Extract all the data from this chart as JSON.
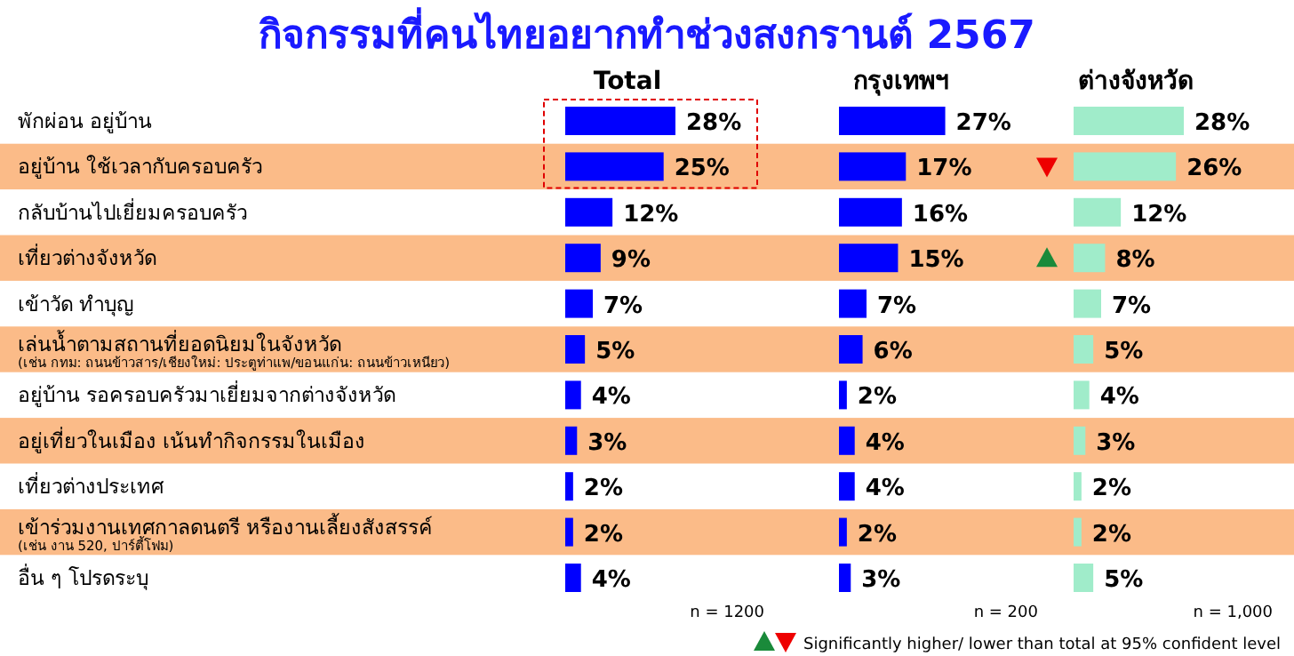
{
  "chart_data": [
    {
      "type": "bar",
      "orientation": "horizontal",
      "title": "กิจกรรมที่คนไทยอยากทำช่วงสงกรานต์ 2567",
      "tick_labels": "y",
      "categories": [
        "พักผ่อน อยู่บ้าน",
        "อยู่บ้าน ใช้เวลากับครอบครัว",
        "กลับบ้านไปเยี่ยมครอบครัว",
        "เที่ยวต่างจังหวัด",
        "เข้าวัด ทำบุญ",
        "เล่นน้ำตามสถานที่ยอดนิยมในจังหวัด\n(เช่น กทม: ถนนข้าวสาร/เชียงใหม่: ประตูท่าแพ/ขอนแก่น: ถนนข้าวเหนียว)",
        "อยู่บ้าน รอครอบครัวมาเยี่ยมจากต่างจังหวัด",
        "อยู่เที่ยวในเมือง เน้นทำกิจกรรมในเมือง",
        "เที่ยวต่างประเทศ",
        "เข้าร่วมงานเทศกาลดนตรี หรืองานเลี้ยงสังสรรค์\n(เช่น งาน 520, ปาร์ตี้โฟม)",
        "อื่น ๆ โปรดระบุ"
      ],
      "series": [
        {
          "name": "Total",
          "color": "#0000ff",
          "values": [
            28,
            25,
            12,
            9,
            7,
            5,
            4,
            3,
            2,
            2,
            4
          ],
          "value_labels": [
            "28%",
            "25%",
            "12%",
            "9%",
            "7%",
            "5%",
            "4%",
            "3%",
            "2%",
            "2%",
            "4%"
          ]
        }
      ],
      "annotations": [
        "n = 1200"
      ],
      "bands": [
        {
          "axis": "y",
          "from": "อยู่บ้าน ใช้เวลากับครอบครัว",
          "to": "อยู่บ้าน ใช้เวลากับครอบครัว",
          "color": "#fbbb88"
        },
        {
          "axis": "y",
          "from": "เที่ยวต่างจังหวัด",
          "to": "เที่ยวต่างจังหวัด",
          "color": "#fbbb88"
        },
        {
          "axis": "y",
          "from": "เล่นน้ำตามสถานที่ยอดนิยมในจังหวัด\n(เช่น กทม: ถนนข้าวสาร/เชียงใหม่: ประตูท่าแพ/ขอนแก่น: ถนนข้าวเหนียว)",
          "to": "เล่นน้ำตามสถานที่ยอดนิยมในจังหวัด\n(เช่น กทม: ถนนข้าวสาร/เชียงใหม่: ประตูท่าแพ/ขอนแก่น: ถนนข้าวเหนียว)",
          "color": "#fbbb88"
        },
        {
          "axis": "y",
          "from": "อยู่เที่ยวในเมือง เน้นทำกิจกรรมในเมือง",
          "to": "อยู่เที่ยวในเมือง เน้นทำกิจกรรมในเมือง",
          "color": "#fbbb88"
        },
        {
          "axis": "y",
          "from": "เข้าร่วมงานเทศกาลดนตรี หรืองานเลี้ยงสังสรรค์\n(เช่น งาน 520, ปาร์ตี้โฟม)",
          "to": "เข้าร่วมงานเทศกาลดนตรี หรืองานเลี้ยงสังสรรค์\n(เช่น งาน 520, ปาร์ตี้โฟม)",
          "color": "#fbbb88"
        }
      ]
    },
    {
      "type": "bar",
      "orientation": "horizontal",
      "tick_labels": false,
      "categories": [
        "พักผ่อน อยู่บ้าน",
        "อยู่บ้าน ใช้เวลากับครอบครัว",
        "กลับบ้านไปเยี่ยมครอบครัว",
        "เที่ยวต่างจังหวัด",
        "เข้าวัด ทำบุญ",
        "เล่นน้ำตามสถานที่ยอดนิยมในจังหวัด\n(เช่น กทม: ถนนข้าวสาร/เชียงใหม่: ประตูท่าแพ/ขอนแก่น: ถนนข้าวเหนียว)",
        "อยู่บ้าน รอครอบครัวมาเยี่ยมจากต่างจังหวัด",
        "อยู่เที่ยวในเมือง เน้นทำกิจกรรมในเมือง",
        "เที่ยวต่างประเทศ",
        "เข้าร่วมงานเทศกาลดนตรี หรืองานเลี้ยงสังสรรค์\n(เช่น งาน 520, ปาร์ตี้โฟม)",
        "อื่น ๆ โปรดระบุ"
      ],
      "series": [
        {
          "name": "กรุงเทพฯ",
          "color": "#0000ff",
          "values": [
            27,
            17,
            16,
            15,
            7,
            6,
            2,
            4,
            4,
            2,
            3
          ],
          "value_labels": [
            "27%",
            "17%",
            "16%",
            "15%",
            "7%",
            "6%",
            "2%",
            "4%",
            "4%",
            "2%",
            "3%"
          ]
        }
      ],
      "annotations": [
        "n = 200"
      ],
      "bands": [
        {
          "axis": "y",
          "from": "อยู่บ้าน ใช้เวลากับครอบครัว",
          "to": "อยู่บ้าน ใช้เวลากับครอบครัว",
          "color": "#fbbb88"
        },
        {
          "axis": "y",
          "from": "เที่ยวต่างจังหวัด",
          "to": "เที่ยวต่างจังหวัด",
          "color": "#fbbb88"
        },
        {
          "axis": "y",
          "from": "เล่นน้ำตามสถานที่ยอดนิยมในจังหวัด\n(เช่น กทม: ถนนข้าวสาร/เชียงใหม่: ประตูท่าแพ/ขอนแก่น: ถนนข้าวเหนียว)",
          "to": "เล่นน้ำตามสถานที่ยอดนิยมในจังหวัด\n(เช่น กทม: ถนนข้าวสาร/เชียงใหม่: ประตูท่าแพ/ขอนแก่น: ถนนข้าวเหนียว)",
          "color": "#fbbb88"
        },
        {
          "axis": "y",
          "from": "อยู่เที่ยวในเมือง เน้นทำกิจกรรมในเมือง",
          "to": "อยู่เที่ยวในเมือง เน้นทำกิจกรรมในเมือง",
          "color": "#fbbb88"
        },
        {
          "axis": "y",
          "from": "เข้าร่วมงานเทศกาลดนตรี หรืองานเลี้ยงสังสรรค์\n(เช่น งาน 520, ปาร์ตี้โฟม)",
          "to": "เข้าร่วมงานเทศกาลดนตรี หรืองานเลี้ยงสังสรรค์\n(เช่น งาน 520, ปาร์ตี้โฟม)",
          "color": "#fbbb88"
        }
      ]
    },
    {
      "type": "bar",
      "orientation": "horizontal",
      "tick_labels": false,
      "categories": [
        "พักผ่อน อยู่บ้าน",
        "อยู่บ้าน ใช้เวลากับครอบครัว",
        "กลับบ้านไปเยี่ยมครอบครัว",
        "เที่ยวต่างจังหวัด",
        "เข้าวัด ทำบุญ",
        "เล่นน้ำตามสถานที่ยอดนิยมในจังหวัด\n(เช่น กทม: ถนนข้าวสาร/เชียงใหม่: ประตูท่าแพ/ขอนแก่น: ถนนข้าวเหนียว)",
        "อยู่บ้าน รอครอบครัวมาเยี่ยมจากต่างจังหวัด",
        "อยู่เที่ยวในเมือง เน้นทำกิจกรรมในเมือง",
        "เที่ยวต่างประเทศ",
        "เข้าร่วมงานเทศกาลดนตรี หรืองานเลี้ยงสังสรรค์\n(เช่น งาน 520, ปาร์ตี้โฟม)",
        "อื่น ๆ โปรดระบุ"
      ],
      "series": [
        {
          "name": "ต่างจังหวัด",
          "color": "#a0ecca",
          "values": [
            28,
            26,
            12,
            8,
            7,
            5,
            4,
            3,
            2,
            2,
            5
          ],
          "value_labels": [
            "28%",
            "26%",
            "12%",
            "8%",
            "7%",
            "5%",
            "4%",
            "3%",
            "2%",
            "2%",
            "5%"
          ]
        }
      ],
      "annotations": [
        "n = 1,000",
        "Significantly higher/ lower than total at 95% confident level"
      ],
      "bands": [
        {
          "axis": "y",
          "from": "อยู่บ้าน ใช้เวลากับครอบครัว",
          "to": "อยู่บ้าน ใช้เวลากับครอบครัว",
          "color": "#fbbb88"
        },
        {
          "axis": "y",
          "from": "เที่ยวต่างจังหวัด",
          "to": "เที่ยวต่างจังหวัด",
          "color": "#fbbb88"
        },
        {
          "axis": "y",
          "from": "เล่นน้ำตามสถานที่ยอดนิยมในจังหวัด\n(เช่น กทม: ถนนข้าวสาร/เชียงใหม่: ประตูท่าแพ/ขอนแก่น: ถนนข้าวเหนียว)",
          "to": "เล่นน้ำตามสถานที่ยอดนิยมในจังหวัด\n(เช่น กทม: ถนนข้าวสาร/เชียงใหม่: ประตูท่าแพ/ขอนแก่น: ถนนข้าวเหนียว)",
          "color": "#fbbb88"
        },
        {
          "axis": "y",
          "from": "อยู่เที่ยวในเมือง เน้นทำกิจกรรมในเมือง",
          "to": "อยู่เที่ยวในเมือง เน้นทำกิจกรรมในเมือง",
          "color": "#fbbb88"
        },
        {
          "axis": "y",
          "from": "เข้าร่วมงานเทศกาลดนตรี หรืองานเลี้ยงสังสรรค์\n(เช่น งาน 520, ปาร์ตี้โฟม)",
          "to": "เข้าร่วมงานเทศกาลดนตรี หรืองานเลี้ยงสังสรรค์\n(เช่น งาน 520, ปาร์ตี้โฟม)",
          "color": "#fbbb88"
        }
      ]
    }
  ]
}
